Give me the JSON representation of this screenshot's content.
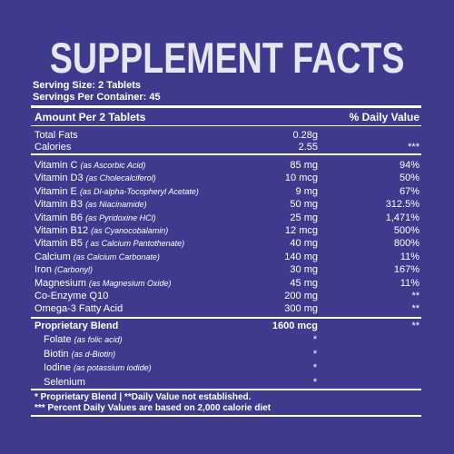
{
  "title": "SUPPLEMENT FACTS",
  "serving_size": "Serving Size: 2 Tablets",
  "servings_per_container": "Servings Per Container: 45",
  "header": {
    "amount": "Amount Per 2 Tablets",
    "dv": "% Daily Value"
  },
  "basics": [
    {
      "name": "Total Fats",
      "amount": "0.28g"
    },
    {
      "name": "Calories",
      "amount": "2.55",
      "dv": "***"
    }
  ],
  "nutrients": [
    {
      "name": "Vitamin C",
      "note": "(as Ascorbic Acid)",
      "amount": "85 mg",
      "dv": "94%"
    },
    {
      "name": "Vitamin D3",
      "note": "(as Cholecalciferol)",
      "amount": "10 mcg",
      "dv": "50%"
    },
    {
      "name": "Vitamin E",
      "note": "(as Dl-alpha-Tocopheryl Acetate)",
      "amount": "9 mg",
      "dv": "67%"
    },
    {
      "name": "Vitamin B3",
      "note": "(as Niacinamide)",
      "amount": "50 mg",
      "dv": "312.5%"
    },
    {
      "name": "Vitamin B6",
      "note": "(as Pyridoxine HCl)",
      "amount": "25 mg",
      "dv": "1,471%"
    },
    {
      "name": "Vitamin B12",
      "note": "(as Cyanocobalamin)",
      "amount": "12 mcg",
      "dv": "500%"
    },
    {
      "name": "Vitamin B5",
      "note": "( as Calcium Pantothenate)",
      "amount": "40 mg",
      "dv": "800%"
    },
    {
      "name": "Calcium",
      "note": "(as Calcium Carbonate)",
      "amount": "140 mg",
      "dv": "11%"
    },
    {
      "name": "Iron",
      "note": "(Carbonyl)",
      "amount": "30 mg",
      "dv": "167%"
    },
    {
      "name": "Magnesium",
      "note": "(as Magnesium Oxide)",
      "amount": "45 mg",
      "dv": "11%"
    },
    {
      "name": "Co-Enzyme Q10",
      "amount": "200 mg",
      "dv": "**"
    },
    {
      "name": "Omega-3 Fatty Acid",
      "amount": "300 mg",
      "dv": "**"
    }
  ],
  "blend": {
    "name": "Proprietary Blend",
    "amount": "1600 mcg",
    "dv": "**",
    "items": [
      {
        "name": "Folate",
        "note": "(as folic acid)",
        "amount": "*"
      },
      {
        "name": "Biotin",
        "note": "(as d-Biotin)",
        "amount": "*"
      },
      {
        "name": "Iodine",
        "note": "(as potassium iodide)",
        "amount": "*"
      },
      {
        "name": "Selenium",
        "amount": "*"
      }
    ]
  },
  "footnotes": [
    "* Proprietary Blend  |  **Daily Value not established.",
    "*** Percent Daily Values are based on 2,000 calorie diet"
  ]
}
